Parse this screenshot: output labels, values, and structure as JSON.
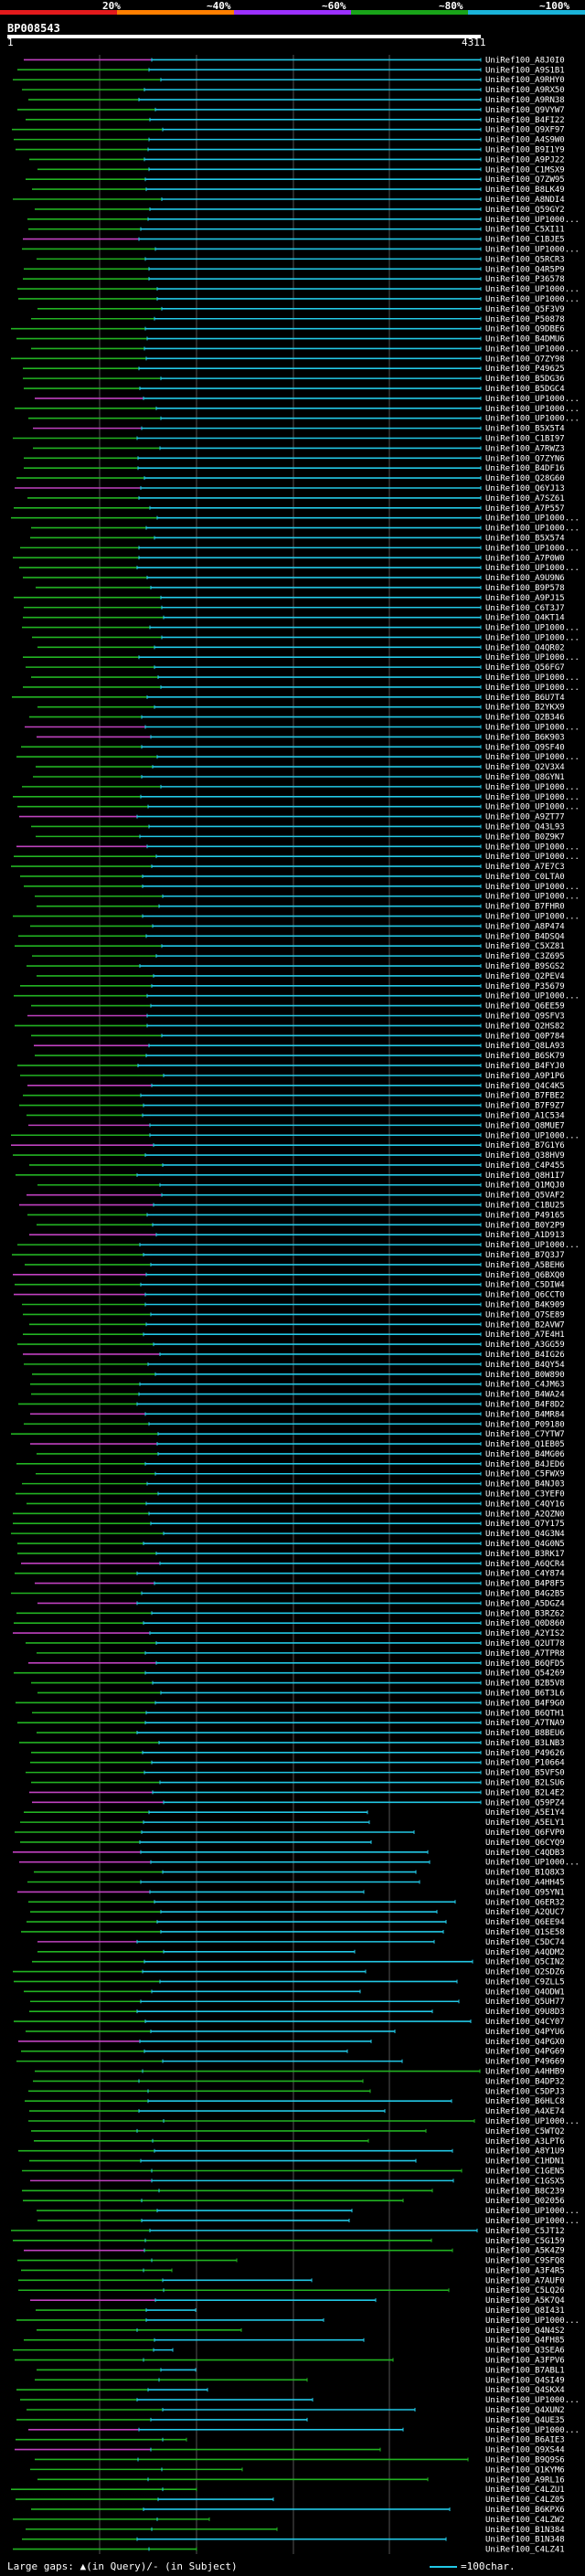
{
  "scale": {
    "labels": [
      "20%",
      "~40%",
      "~60%",
      "~80%",
      "~100%"
    ],
    "colors": [
      "#e31a1c",
      "#ff7f00",
      "#9b30ff",
      "#19a319",
      "#1ab3d9"
    ]
  },
  "protein": "BP008543",
  "ruler": {
    "start": "1",
    "end": "4311"
  },
  "footer": {
    "large_gaps": "Large gaps: ▲(in Query)/- (in Subject)",
    "scale_note": "=100char."
  },
  "colors": {
    "green": "#22b322",
    "cyan": "#22c8e6",
    "magenta": "#c040c0",
    "grid": "#555555"
  },
  "chart_data": {
    "type": "alignment",
    "query_length": 4311,
    "hit_ids": [
      "UniRef100_A8J0I0",
      "UniRef100_A9S1B1",
      "UniRef100_A9RHY0",
      "UniRef100_A9RX50",
      "UniRef100_A9RN38",
      "UniRef100_Q9VYW7",
      "UniRef100_B4FI22",
      "UniRef100_Q9XF97",
      "UniRef100_A4S9W0",
      "UniRef100_B9I1Y9",
      "UniRef100_A9PJ22",
      "UniRef100_C1MSX9",
      "UniRef100_Q7ZW95",
      "UniRef100_B8LK49",
      "UniRef100_A8NDI4",
      "UniRef100_Q59GY2",
      "UniRef100_UP1000...",
      "UniRef100_C5XI11",
      "UniRef100_C1BJE5",
      "UniRef100_UP1000...",
      "UniRef100_Q5RCR3",
      "UniRef100_Q4R5P9",
      "UniRef100_P36578",
      "UniRef100_UP1000...",
      "UniRef100_UP1000...",
      "UniRef100_Q5F3V9",
      "UniRef100_P50878",
      "UniRef100_Q9DBE6",
      "UniRef100_B4DMU6",
      "UniRef100_UP1000...",
      "UniRef100_Q7ZY98",
      "UniRef100_P49625",
      "UniRef100_B5DG36",
      "UniRef100_B5DGC4",
      "UniRef100_UP1000...",
      "UniRef100_UP1000...",
      "UniRef100_UP1000...",
      "UniRef100_B5X5T4",
      "UniRef100_C1BI97",
      "UniRef100_A7RWZ3",
      "UniRef100_Q7ZYN6",
      "UniRef100_B4DF16",
      "UniRef100_Q28G60",
      "UniRef100_Q6YJ13",
      "UniRef100_A7SZ61",
      "UniRef100_A7P557",
      "UniRef100_UP1000...",
      "UniRef100_UP1000...",
      "UniRef100_B5X574",
      "UniRef100_UP1000...",
      "UniRef100_A7P0W0",
      "UniRef100_UP1000...",
      "UniRef100_A9U9N6",
      "UniRef100_B9P578",
      "UniRef100_A9PJ15",
      "UniRef100_C6T3J7",
      "UniRef100_Q4KT14",
      "UniRef100_UP1000...",
      "UniRef100_UP1000...",
      "UniRef100_Q4QR02",
      "UniRef100_UP1000...",
      "UniRef100_Q56FG7",
      "UniRef100_UP1000...",
      "UniRef100_UP1000...",
      "UniRef100_B6U7T4",
      "UniRef100_B2YKX9",
      "UniRef100_Q2B346",
      "UniRef100_UP1000...",
      "UniRef100_B6K903",
      "UniRef100_Q9SF40",
      "UniRef100_UP1000...",
      "UniRef100_Q2V3X4",
      "UniRef100_Q8GYN1",
      "UniRef100_UP1000...",
      "UniRef100_UP1000...",
      "UniRef100_UP1000...",
      "UniRef100_A9ZT77",
      "UniRef100_Q43L93",
      "UniRef100_B0Z9K7",
      "UniRef100_UP1000...",
      "UniRef100_UP1000...",
      "UniRef100_A7E7C3",
      "UniRef100_C0LTA0",
      "UniRef100_UP1000...",
      "UniRef100_UP1000...",
      "UniRef100_B7FHR0",
      "UniRef100_UP1000...",
      "UniRef100_A8P474",
      "UniRef100_B4DSQ4",
      "UniRef100_C5XZ81",
      "UniRef100_C3Z695",
      "UniRef100_B9SGS2",
      "UniRef100_Q2PEV4",
      "UniRef100_P35679",
      "UniRef100_UP1000...",
      "UniRef100_Q6EE59",
      "UniRef100_Q9SFV3",
      "UniRef100_Q2HS82",
      "UniRef100_Q0P784",
      "UniRef100_Q8LA93",
      "UniRef100_B6SK79",
      "UniRef100_B4FYJ0",
      "UniRef100_A9P1P6",
      "UniRef100_Q4C4K5",
      "UniRef100_B7FBE2",
      "UniRef100_B7F9Z7",
      "UniRef100_A1C534",
      "UniRef100_Q8MUE7",
      "UniRef100_UP1000...",
      "UniRef100_B7G1Y6",
      "UniRef100_Q38HV9",
      "UniRef100_C4P455",
      "UniRef100_Q8H1I7",
      "UniRef100_Q1MQJ0",
      "UniRef100_Q5VAF2",
      "UniRef100_C1BU25",
      "UniRef100_P49165",
      "UniRef100_B0Y2P9",
      "UniRef100_A1D913",
      "UniRef100_UP1000...",
      "UniRef100_B7Q3J7",
      "UniRef100_A5BEH6",
      "UniRef100_Q6BXQ0",
      "UniRef100_C5DIW4",
      "UniRef100_Q6CCT0",
      "UniRef100_B4K909",
      "UniRef100_Q7SE89",
      "UniRef100_B2AVW7",
      "UniRef100_A7E4H1",
      "UniRef100_A3GG59",
      "UniRef100_B4IG26",
      "UniRef100_B4QY54",
      "UniRef100_B0W890",
      "UniRef100_C4JM63",
      "UniRef100_B4WA24",
      "UniRef100_B4F8D2",
      "UniRef100_B4MR84",
      "UniRef100_P09180",
      "UniRef100_C7YTW7",
      "UniRef100_Q1EB05",
      "UniRef100_B4MG06",
      "UniRef100_B4JED6",
      "UniRef100_C5FWX9",
      "UniRef100_B4NJ03",
      "UniRef100_C3YEF0",
      "UniRef100_C4QY16",
      "UniRef100_A2QZN0",
      "UniRef100_Q7Y175",
      "UniRef100_Q4G3N4",
      "UniRef100_Q4G0N5",
      "UniRef100_B3RK17",
      "UniRef100_A6QCR4",
      "UniRef100_C4Y874",
      "UniRef100_B4P8F5",
      "UniRef100_B4G2B5",
      "UniRef100_A5DGZ4",
      "UniRef100_B3RZ62",
      "UniRef100_Q0D860",
      "UniRef100_A2YIS2",
      "UniRef100_Q2UT78",
      "UniRef100_A7TPR8",
      "UniRef100_B6QFD5",
      "UniRef100_Q54269",
      "UniRef100_B2B5V8",
      "UniRef100_B6T3L6",
      "UniRef100_B4F9G0",
      "UniRef100_B6QTH1",
      "UniRef100_A7TNA9",
      "UniRef100_B8BEU6",
      "UniRef100_B3LNB3",
      "UniRef100_P49626",
      "UniRef100_P10664",
      "UniRef100_B5VFS0",
      "UniRef100_B2LSU6",
      "UniRef100_B2L4E2",
      "UniRef100_Q59PZ4",
      "UniRef100_A5E1Y4",
      "UniRef100_A5ELY1",
      "UniRef100_Q6FVP0",
      "UniRef100_Q6CYQ9",
      "UniRef100_C4QDB3",
      "UniRef100_UP1000...",
      "UniRef100_B1Q8X3",
      "UniRef100_A4HH45",
      "UniRef100_Q95YN1",
      "UniRef100_Q6ER32",
      "UniRef100_A2QUC7",
      "UniRef100_Q6EE94",
      "UniRef100_Q1SE58",
      "UniRef100_C5DC74",
      "UniRef100_A4QDM2",
      "UniRef100_Q5CIN2",
      "UniRef100_Q2SDZ6",
      "UniRef100_C9ZLL5",
      "UniRef100_Q4ODW1",
      "UniRef100_Q5UH77",
      "UniRef100_Q9U8D3",
      "UniRef100_Q4CY07",
      "UniRef100_Q4PYU6",
      "UniRef100_Q4PGX0",
      "UniRef100_Q4PG69",
      "UniRef100_P49669",
      "UniRef100_A4HHB9",
      "UniRef100_B4DP32",
      "UniRef100_C5DPJ3",
      "UniRef100_B6HLC8",
      "UniRef100_A4XE74",
      "UniRef100_UP1000...",
      "UniRef100_C5WTQ2",
      "UniRef100_A3LPT6",
      "UniRef100_A8Y1U9",
      "UniRef100_C1HDN1",
      "UniRef100_C1GEN5",
      "UniRef100_C1GSX5",
      "UniRef100_B8C239",
      "UniRef100_Q02056",
      "UniRef100_UP1000...",
      "UniRef100_UP1000...",
      "UniRef100_C5JT12",
      "UniRef100_C5G159",
      "UniRef100_A5K4Z9",
      "UniRef100_C9SFQ8",
      "UniRef100_A3F4R5",
      "UniRef100_A7AUF0",
      "UniRef100_C5LQ26",
      "UniRef100_A5K7Q4",
      "UniRef100_Q8I431",
      "UniRef100_UP1000...",
      "UniRef100_Q4N4S2",
      "UniRef100_Q4FH85",
      "UniRef100_Q3SEA6",
      "UniRef100_A3FPV6",
      "UniRef100_B7ABL1",
      "UniRef100_Q4SI49",
      "UniRef100_Q4SKX4",
      "UniRef100_UP1000...",
      "UniRef100_Q4XUN2",
      "UniRef100_Q4UE35",
      "UniRef100_UP1000...",
      "UniRef100_B6AIE3",
      "UniRef100_Q9XS44",
      "UniRef100_B9Q9S6",
      "UniRef100_Q1KYM6",
      "UniRef100_A9RL16",
      "UniRef100_C4LZU1",
      "UniRef100_C4LZ05",
      "UniRef100_B6KPX6",
      "UniRef100_C4LZW2",
      "UniRef100_B1N384",
      "UniRef100_B1N348",
      "UniRef100_C4LZ41"
    ]
  }
}
